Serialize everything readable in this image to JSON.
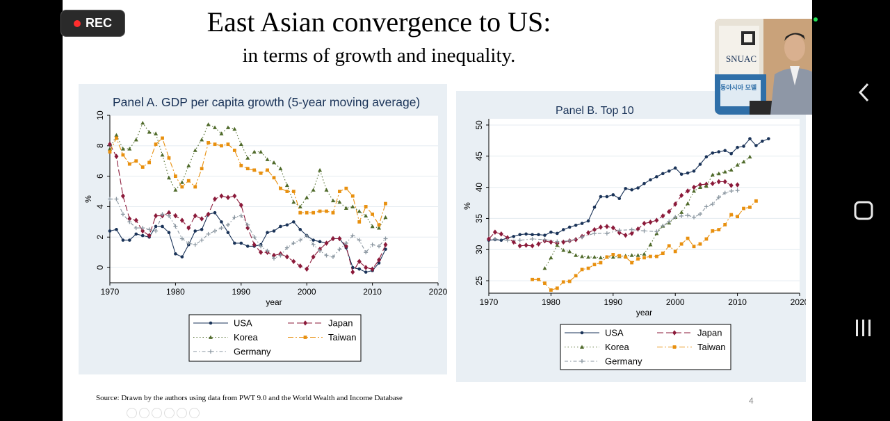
{
  "slide": {
    "title": "East Asian convergence to US:",
    "subtitle": "in terms of growth and inequality.",
    "source": "Source: Drawn by the authors using data from PWT 9.0 and the World Wealth and Income Database",
    "page_number": "4"
  },
  "rec_button": {
    "label": "REC",
    "dot_color": "#ff2d2d"
  },
  "webcam": {
    "sign_text": "SNUAC",
    "banner_text": "동아시아 모델"
  },
  "series_styles": {
    "USA": {
      "color": "#1a3358",
      "marker": "circle",
      "dash": ""
    },
    "Japan": {
      "color": "#8b1a3a",
      "marker": "diamond",
      "dash": "9,4"
    },
    "Korea": {
      "color": "#4f6a2a",
      "marker": "triangle",
      "dash": "1.5,3"
    },
    "Taiwan": {
      "color": "#e8900f",
      "marker": "square",
      "dash": "8,3,2,3"
    },
    "Germany": {
      "color": "#8a96a0",
      "marker": "plus",
      "dash": "5,3,1.5,3"
    }
  },
  "chart_data": [
    {
      "type": "line",
      "title": "Panel A. GDP per capita growth (5-year moving average)",
      "xlabel": "year",
      "ylabel": "%",
      "xlim": [
        1970,
        2020
      ],
      "ylim": [
        -1,
        10
      ],
      "xticks": [
        1970,
        1980,
        1990,
        2000,
        2010,
        2020
      ],
      "yticks": [
        0,
        2,
        4,
        6,
        8,
        10
      ],
      "grid": true,
      "legend_position": "bottom",
      "legend": [
        "USA",
        "Japan",
        "Korea",
        "Taiwan",
        "Germany"
      ],
      "series": [
        {
          "name": "USA",
          "x": [
            1970,
            1971,
            1972,
            1973,
            1974,
            1975,
            1976,
            1977,
            1978,
            1979,
            1980,
            1981,
            1982,
            1983,
            1984,
            1985,
            1986,
            1987,
            1988,
            1989,
            1990,
            1991,
            1992,
            1993,
            1994,
            1995,
            1996,
            1997,
            1998,
            1999,
            2000,
            2001,
            2002,
            2003,
            2004,
            2005,
            2006,
            2007,
            2008,
            2009,
            2010,
            2011,
            2012
          ],
          "y": [
            2.4,
            2.5,
            1.8,
            1.8,
            2.2,
            2.1,
            2.0,
            2.7,
            2.7,
            2.3,
            0.9,
            0.7,
            1.5,
            2.4,
            2.5,
            3.5,
            3.6,
            3.0,
            2.3,
            1.6,
            1.6,
            1.4,
            1.4,
            1.5,
            2.3,
            2.4,
            2.7,
            2.8,
            3.0,
            2.5,
            2.1,
            1.8,
            1.7,
            1.6,
            1.9,
            1.9,
            1.3,
            0.0,
            -0.1,
            -0.3,
            -0.2,
            0.3,
            1.2
          ]
        },
        {
          "name": "Japan",
          "x": [
            1970,
            1971,
            1972,
            1973,
            1974,
            1975,
            1976,
            1977,
            1978,
            1979,
            1980,
            1981,
            1982,
            1983,
            1984,
            1985,
            1986,
            1987,
            1988,
            1989,
            1990,
            1991,
            1992,
            1993,
            1994,
            1995,
            1996,
            1997,
            1998,
            1999,
            2000,
            2001,
            2002,
            2003,
            2004,
            2005,
            2006,
            2007,
            2008,
            2009,
            2010,
            2011,
            2012
          ],
          "y": [
            8.1,
            7.3,
            4.7,
            3.2,
            3.1,
            2.4,
            2.1,
            3.4,
            3.4,
            3.6,
            3.4,
            3.1,
            2.6,
            3.4,
            3.2,
            3.5,
            4.5,
            4.7,
            4.6,
            4.7,
            4.1,
            2.6,
            1.5,
            1.0,
            1.0,
            0.8,
            0.9,
            0.7,
            0.4,
            0.1,
            -0.1,
            0.7,
            1.2,
            1.6,
            1.9,
            1.9,
            1.4,
            -0.3,
            0.4,
            0.0,
            -0.1,
            0.5,
            1.5
          ]
        },
        {
          "name": "Korea",
          "x": [
            1970,
            1971,
            1972,
            1973,
            1974,
            1975,
            1976,
            1977,
            1978,
            1979,
            1980,
            1981,
            1982,
            1983,
            1984,
            1985,
            1986,
            1987,
            1988,
            1989,
            1990,
            1991,
            1992,
            1993,
            1994,
            1995,
            1996,
            1997,
            1998,
            1999,
            2000,
            2001,
            2002,
            2003,
            2004,
            2005,
            2006,
            2007,
            2008,
            2009,
            2010,
            2011,
            2012
          ],
          "y": [
            7.8,
            8.7,
            7.8,
            7.8,
            8.4,
            9.5,
            8.9,
            8.8,
            7.4,
            5.9,
            5.1,
            5.6,
            6.7,
            7.7,
            8.4,
            9.4,
            9.2,
            8.8,
            9.2,
            9.1,
            8.1,
            7.2,
            7.6,
            7.6,
            7.1,
            6.9,
            6.5,
            5.4,
            4.3,
            4.0,
            4.6,
            5.1,
            6.4,
            5.1,
            4.4,
            4.3,
            3.9,
            4.0,
            3.7,
            3.4,
            2.7,
            2.6,
            3.3
          ]
        },
        {
          "name": "Taiwan",
          "x": [
            1970,
            1971,
            1972,
            1973,
            1974,
            1975,
            1976,
            1977,
            1978,
            1979,
            1980,
            1981,
            1982,
            1983,
            1984,
            1985,
            1986,
            1987,
            1988,
            1989,
            1990,
            1991,
            1992,
            1993,
            1994,
            1995,
            1996,
            1997,
            1998,
            1999,
            2000,
            2001,
            2002,
            2003,
            2004,
            2005,
            2006,
            2007,
            2008,
            2009,
            2010,
            2011,
            2012
          ],
          "y": [
            7.6,
            8.5,
            7.4,
            6.8,
            7.0,
            6.6,
            6.9,
            8.1,
            8.5,
            7.2,
            6.0,
            5.3,
            5.7,
            5.3,
            6.5,
            8.2,
            8.1,
            8.0,
            8.1,
            7.7,
            6.7,
            6.5,
            6.4,
            6.2,
            6.4,
            5.9,
            5.2,
            5.0,
            5.0,
            3.6,
            3.6,
            3.6,
            3.7,
            3.7,
            3.6,
            5.0,
            5.2,
            4.7,
            3.0,
            4.0,
            3.5,
            2.8,
            4.2
          ]
        },
        {
          "name": "Germany",
          "x": [
            1970,
            1971,
            1972,
            1973,
            1974,
            1975,
            1976,
            1977,
            1978,
            1979,
            1980,
            1981,
            1982,
            1983,
            1984,
            1985,
            1986,
            1987,
            1988,
            1989,
            1990,
            1991,
            1992,
            1993,
            1994,
            1995,
            1996,
            1997,
            1998,
            1999,
            2000,
            2001,
            2002,
            2003,
            2004,
            2005,
            2006,
            2007,
            2008,
            2009,
            2010,
            2011,
            2012
          ],
          "y": [
            4.5,
            4.5,
            3.5,
            3.0,
            2.6,
            2.6,
            2.5,
            2.4,
            3.5,
            3.4,
            2.7,
            1.9,
            1.6,
            1.5,
            1.8,
            2.2,
            2.4,
            2.6,
            2.8,
            3.3,
            3.4,
            2.8,
            2.0,
            1.4,
            1.1,
            0.6,
            0.8,
            1.3,
            1.6,
            1.8,
            2.1,
            1.5,
            1.1,
            0.8,
            0.7,
            1.2,
            1.6,
            2.1,
            1.8,
            1.0,
            1.5,
            1.4,
            1.9
          ]
        }
      ]
    },
    {
      "type": "line",
      "title": "Panel B. Top 10",
      "xlabel": "year",
      "ylabel": "%",
      "xlim": [
        1970,
        2020
      ],
      "ylim": [
        23,
        51
      ],
      "xticks": [
        1970,
        1980,
        1990,
        2000,
        2010,
        2020
      ],
      "yticks": [
        25,
        30,
        35,
        40,
        45,
        50
      ],
      "grid": true,
      "legend_position": "bottom",
      "legend": [
        "USA",
        "Japan",
        "Korea",
        "Taiwan",
        "Germany"
      ],
      "series": [
        {
          "name": "USA",
          "x": [
            1970,
            1971,
            1972,
            1973,
            1974,
            1975,
            1976,
            1977,
            1978,
            1979,
            1980,
            1981,
            1982,
            1983,
            1984,
            1985,
            1986,
            1987,
            1988,
            1989,
            1990,
            1991,
            1992,
            1993,
            1994,
            1995,
            1996,
            1997,
            1998,
            1999,
            2000,
            2001,
            2002,
            2003,
            2004,
            2005,
            2006,
            2007,
            2008,
            2009,
            2010,
            2011,
            2012,
            2013,
            2014,
            2015
          ],
          "y": [
            31.5,
            31.6,
            31.5,
            31.9,
            32.1,
            32.4,
            32.5,
            32.4,
            32.4,
            32.3,
            32.8,
            32.6,
            33.2,
            33.6,
            33.9,
            34.2,
            34.6,
            36.8,
            38.5,
            38.5,
            38.8,
            38.2,
            39.8,
            39.6,
            39.9,
            40.6,
            41.2,
            41.7,
            42.2,
            42.6,
            43.1,
            42.1,
            42.3,
            42.6,
            43.7,
            44.9,
            45.5,
            45.7,
            45.9,
            45.4,
            46.4,
            46.6,
            47.8,
            46.7,
            47.4,
            47.8
          ]
        },
        {
          "name": "Japan",
          "x": [
            1970,
            1971,
            1972,
            1973,
            1974,
            1975,
            1976,
            1977,
            1978,
            1979,
            1980,
            1981,
            1982,
            1983,
            1984,
            1985,
            1986,
            1987,
            1988,
            1989,
            1990,
            1991,
            1992,
            1993,
            1994,
            1995,
            1996,
            1997,
            1998,
            1999,
            2000,
            2001,
            2002,
            2003,
            2004,
            2005,
            2006,
            2007,
            2008,
            2009,
            2010
          ],
          "y": [
            31.7,
            32.8,
            32.5,
            31.9,
            31.2,
            30.6,
            30.7,
            30.6,
            30.9,
            31.4,
            31.2,
            31.0,
            31.2,
            31.4,
            31.6,
            32.1,
            32.7,
            33.2,
            33.6,
            33.7,
            33.5,
            32.7,
            32.3,
            32.6,
            33.3,
            34.2,
            34.4,
            34.7,
            35.4,
            36.1,
            37.3,
            38.7,
            39.4,
            40.0,
            40.4,
            40.5,
            40.6,
            40.9,
            40.9,
            40.3,
            40.4
          ]
        },
        {
          "name": "Korea",
          "x": [
            1979,
            1980,
            1981,
            1982,
            1983,
            1984,
            1985,
            1986,
            1987,
            1988,
            1989,
            1990,
            1991,
            1992,
            1993,
            1994,
            1995,
            1996,
            1997,
            1998,
            1999,
            2000,
            2001,
            2002,
            2003,
            2004,
            2005,
            2006,
            2007,
            2008,
            2009,
            2010,
            2011,
            2012
          ],
          "y": [
            27.0,
            28.7,
            30.7,
            29.9,
            29.7,
            29.1,
            28.9,
            28.8,
            28.8,
            28.7,
            28.8,
            28.8,
            28.9,
            29.0,
            29.1,
            29.1,
            29.3,
            30.8,
            32.6,
            33.8,
            34.3,
            35.2,
            36.0,
            37.4,
            39.4,
            40.0,
            40.2,
            42.0,
            42.2,
            42.5,
            42.8,
            43.6,
            44.1,
            44.9
          ]
        },
        {
          "name": "Taiwan",
          "x": [
            1977,
            1978,
            1979,
            1980,
            1981,
            1982,
            1983,
            1984,
            1985,
            1986,
            1987,
            1988,
            1989,
            1990,
            1991,
            1992,
            1993,
            1994,
            1995,
            1996,
            1997,
            1998,
            1999,
            2000,
            2001,
            2002,
            2003,
            2004,
            2005,
            2006,
            2007,
            2008,
            2009,
            2010,
            2011,
            2012,
            2013
          ],
          "y": [
            25.2,
            25.2,
            24.6,
            23.5,
            23.8,
            24.8,
            24.9,
            25.8,
            26.8,
            27.0,
            27.6,
            27.9,
            28.8,
            29.2,
            29.0,
            28.8,
            27.9,
            28.5,
            28.7,
            28.9,
            28.9,
            29.4,
            30.6,
            29.7,
            30.9,
            31.8,
            30.5,
            30.9,
            31.7,
            33.0,
            33.2,
            34.0,
            35.6,
            35.3,
            36.6,
            36.8,
            37.8
          ]
        },
        {
          "name": "Germany",
          "x": [
            1971,
            1973,
            1975,
            1977,
            1979,
            1981,
            1983,
            1985,
            1987,
            1989,
            1991,
            1993,
            1995,
            1997,
            1998,
            1999,
            2000,
            2001,
            2002,
            2003,
            2004,
            2005,
            2006,
            2007,
            2008,
            2009,
            2010
          ],
          "y": [
            31.7,
            31.5,
            31.5,
            31.7,
            31.6,
            31.3,
            31.4,
            32.0,
            32.6,
            32.6,
            33.1,
            33.2,
            33.0,
            32.9,
            33.8,
            34.5,
            35.2,
            35.4,
            35.5,
            35.2,
            35.7,
            36.9,
            37.3,
            38.4,
            39.1,
            39.4,
            39.5
          ]
        }
      ]
    }
  ]
}
